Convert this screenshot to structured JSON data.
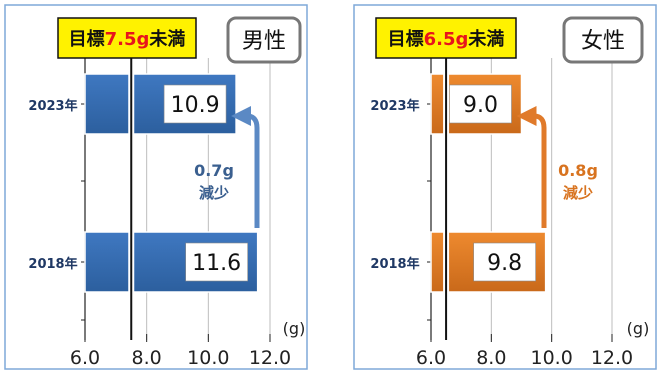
{
  "chart_data": [
    {
      "type": "bar",
      "orientation": "horizontal",
      "gender_label": "男性",
      "categories": [
        "2023年",
        "2018年"
      ],
      "values": [
        10.9,
        11.6
      ],
      "value_labels": [
        "10.9",
        "11.6"
      ],
      "xlim": [
        6.0,
        12.0
      ],
      "x_ticks": [
        "6.0",
        "8.0",
        "10.0",
        "12.0"
      ],
      "unit": "(g)",
      "target": {
        "prefix": "目標",
        "value": "7.5g",
        "suffix": "未満",
        "x": 7.5
      },
      "change": {
        "amount": "0.7g",
        "word": "減少"
      },
      "colors": {
        "bar": "#3f78c1",
        "bar_dark": "#2c5f9e",
        "arrow": "#5b89c4",
        "change_text": "#3a5f8f"
      }
    },
    {
      "type": "bar",
      "orientation": "horizontal",
      "gender_label": "女性",
      "categories": [
        "2023年",
        "2018年"
      ],
      "values": [
        9.0,
        9.8
      ],
      "value_labels": [
        "9.0",
        "9.8"
      ],
      "xlim": [
        6.0,
        12.0
      ],
      "x_ticks": [
        "6.0",
        "8.0",
        "10.0",
        "12.0"
      ],
      "unit": "(g)",
      "target": {
        "prefix": "目標",
        "value": "6.5g",
        "suffix": "未満",
        "x": 6.5
      },
      "change": {
        "amount": "0.8g",
        "word": "減少"
      },
      "colors": {
        "bar": "#ee8a2f",
        "bar_dark": "#c9691a",
        "arrow": "#e07a2a",
        "change_text": "#d8731f"
      }
    }
  ],
  "colors": {
    "panel_border": "#7fa8d8",
    "callout_fill": "#fff200",
    "target_value_text": "#e8141c",
    "category_text": "#1f3864"
  }
}
